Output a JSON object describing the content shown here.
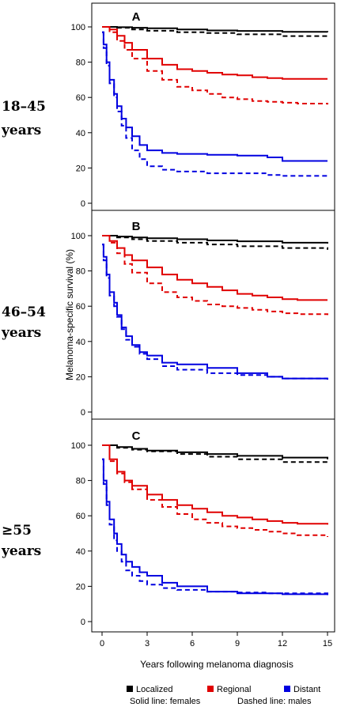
{
  "chart_data": {
    "type": "line",
    "ylabel": "Melanoma-specific survival (%)",
    "xlabel": "Years following melanoma diagnosis",
    "xlim": [
      0,
      15
    ],
    "ylim": [
      0,
      100
    ],
    "xticks": [
      0,
      3,
      6,
      9,
      12,
      15
    ],
    "yticks": [
      0,
      20,
      40,
      60,
      80,
      100
    ],
    "legend": {
      "position": "bottom",
      "entries": [
        {
          "label": "Localized",
          "color": "#000000"
        },
        {
          "label": "Regional",
          "color": "#e00000"
        },
        {
          "label": "Distant",
          "color": "#0000e0"
        }
      ],
      "notes": [
        "Solid line: females",
        "Dashed line: males"
      ]
    },
    "panels": [
      {
        "letter": "A",
        "age_label_lines": [
          "18–45",
          "years"
        ],
        "series": [
          {
            "name": "Localized",
            "sex": "females",
            "color": "#000000",
            "dashed": false,
            "x": [
              0,
              1,
              2,
              3,
              5,
              7,
              9,
              12,
              15
            ],
            "y": [
              100,
              99.8,
              99.5,
              99.2,
              98.5,
              98,
              97.7,
              97.2,
              97
            ]
          },
          {
            "name": "Localized",
            "sex": "males",
            "color": "#000000",
            "dashed": true,
            "x": [
              0,
              1,
              2,
              3,
              5,
              7,
              9,
              12,
              15
            ],
            "y": [
              100,
              99.5,
              98.5,
              97.8,
              97,
              96.5,
              95.8,
              94.8,
              93.5
            ]
          },
          {
            "name": "Regional",
            "sex": "females",
            "color": "#e00000",
            "dashed": false,
            "x": [
              0,
              0.5,
              1,
              1.5,
              2,
              3,
              4,
              5,
              6,
              7,
              8,
              9,
              10,
              11,
              12,
              13,
              15
            ],
            "y": [
              100,
              98.5,
              95,
              91,
              87,
              82,
              78.5,
              76,
              75,
              74,
              73,
              72.5,
              71.5,
              71,
              70.5,
              70.5,
              70.5
            ]
          },
          {
            "name": "Regional",
            "sex": "males",
            "color": "#e00000",
            "dashed": true,
            "x": [
              0,
              0.5,
              1,
              1.5,
              2,
              3,
              4,
              5,
              6,
              7,
              8,
              9,
              10,
              11,
              12,
              13,
              15
            ],
            "y": [
              100,
              97,
              92,
              87,
              82,
              75,
              70,
              66,
              64,
              62,
              60,
              59,
              58,
              57.5,
              57,
              56.5,
              56
            ]
          },
          {
            "name": "Distant",
            "sex": "females",
            "color": "#0000e0",
            "dashed": false,
            "x": [
              0,
              0.1,
              0.3,
              0.5,
              0.8,
              1,
              1.3,
              1.6,
              2,
              2.5,
              3,
              4,
              5,
              7,
              9,
              11,
              12,
              15
            ],
            "y": [
              97,
              90,
              80,
              70,
              62,
              55,
              48,
              43,
              38,
              33,
              30,
              28.5,
              28,
              27.5,
              27,
              26,
              24,
              24
            ]
          },
          {
            "name": "Distant",
            "sex": "males",
            "color": "#0000e0",
            "dashed": true,
            "x": [
              0,
              0.1,
              0.3,
              0.5,
              0.8,
              1,
              1.3,
              1.6,
              2,
              2.5,
              3,
              4,
              5,
              7,
              9,
              11,
              12,
              15
            ],
            "y": [
              97,
              88,
              78,
              68,
              60,
              52,
              44,
              37,
              30,
              25,
              21,
              19,
              18,
              17,
              17,
              16,
              15.5,
              15
            ]
          }
        ]
      },
      {
        "letter": "B",
        "age_label_lines": [
          "46–54",
          "years"
        ],
        "series": [
          {
            "name": "Localized",
            "sex": "females",
            "color": "#000000",
            "dashed": false,
            "x": [
              0,
              1,
              2,
              3,
              5,
              7,
              9,
              12,
              15
            ],
            "y": [
              100,
              99.5,
              99,
              98.5,
              98,
              97.3,
              96.8,
              96,
              95.5
            ]
          },
          {
            "name": "Localized",
            "sex": "males",
            "color": "#000000",
            "dashed": true,
            "x": [
              0,
              1,
              2,
              3,
              5,
              7,
              9,
              12,
              15
            ],
            "y": [
              100,
              99,
              98,
              97,
              96,
              95,
              94,
              93,
              92
            ]
          },
          {
            "name": "Regional",
            "sex": "females",
            "color": "#e00000",
            "dashed": false,
            "x": [
              0,
              0.5,
              1,
              1.5,
              2,
              3,
              4,
              5,
              6,
              7,
              8,
              9,
              10,
              11,
              12,
              13,
              15
            ],
            "y": [
              100,
              97,
              93,
              89,
              86,
              82,
              78,
              75,
              73,
              71,
              69,
              67,
              66,
              65,
              64,
              63.5,
              63.5
            ]
          },
          {
            "name": "Regional",
            "sex": "males",
            "color": "#e00000",
            "dashed": true,
            "x": [
              0,
              0.5,
              1,
              1.5,
              2,
              3,
              4,
              5,
              6,
              7,
              8,
              9,
              10,
              11,
              12,
              13,
              15
            ],
            "y": [
              100,
              96,
              90,
              84,
              79,
              73,
              68,
              65,
              63,
              61,
              60,
              59,
              58,
              57,
              56,
              55.5,
              55
            ]
          },
          {
            "name": "Distant",
            "sex": "females",
            "color": "#0000e0",
            "dashed": false,
            "x": [
              0,
              0.1,
              0.3,
              0.5,
              0.8,
              1,
              1.3,
              1.6,
              2,
              2.5,
              3,
              4,
              5,
              7,
              9,
              11,
              12,
              15
            ],
            "y": [
              95,
              88,
              78,
              68,
              62,
              55,
              48,
              43,
              38,
              34,
              32,
              28,
              27,
              25,
              22,
              20,
              19,
              19
            ]
          },
          {
            "name": "Distant",
            "sex": "males",
            "color": "#0000e0",
            "dashed": true,
            "x": [
              0,
              0.1,
              0.3,
              0.5,
              0.8,
              1,
              1.3,
              1.6,
              2,
              2.5,
              3,
              4,
              5,
              7,
              9,
              11,
              12,
              15
            ],
            "y": [
              95,
              86,
              76,
              66,
              60,
              54,
              47,
              41,
              37,
              33,
              30,
              26,
              24,
              22,
              21,
              20,
              19,
              18
            ]
          }
        ]
      },
      {
        "letter": "C",
        "age_label_lines": [
          "≥55",
          "years"
        ],
        "series": [
          {
            "name": "Localized",
            "sex": "females",
            "color": "#000000",
            "dashed": false,
            "x": [
              0,
              1,
              2,
              3,
              5,
              7,
              9,
              12,
              15
            ],
            "y": [
              100,
              99,
              98,
              97,
              96,
              95,
              94,
              93,
              92
            ]
          },
          {
            "name": "Localized",
            "sex": "males",
            "color": "#000000",
            "dashed": true,
            "x": [
              0,
              1,
              2,
              3,
              5,
              7,
              9,
              12,
              15
            ],
            "y": [
              100,
              98.5,
              97.5,
              96.5,
              95,
              93.5,
              92,
              90.5,
              89
            ]
          },
          {
            "name": "Regional",
            "sex": "females",
            "color": "#e00000",
            "dashed": false,
            "x": [
              0,
              0.5,
              1,
              1.5,
              2,
              3,
              4,
              5,
              6,
              7,
              8,
              9,
              10,
              11,
              12,
              13,
              15
            ],
            "y": [
              100,
              92,
              85,
              80,
              77,
              72,
              69,
              66,
              64,
              62,
              60,
              59,
              58,
              57,
              56,
              55.5,
              55
            ]
          },
          {
            "name": "Regional",
            "sex": "males",
            "color": "#e00000",
            "dashed": true,
            "x": [
              0,
              0.5,
              1,
              1.5,
              2,
              3,
              4,
              5,
              6,
              7,
              8,
              9,
              10,
              11,
              12,
              13,
              15
            ],
            "y": [
              100,
              91,
              84,
              79,
              75,
              69,
              65,
              61,
              58,
              56,
              54,
              53,
              52,
              51,
              50,
              49,
              48
            ]
          },
          {
            "name": "Distant",
            "sex": "females",
            "color": "#0000e0",
            "dashed": false,
            "x": [
              0,
              0.1,
              0.3,
              0.5,
              0.8,
              1,
              1.3,
              1.6,
              2,
              2.5,
              3,
              4,
              5,
              7,
              9,
              11,
              12,
              15
            ],
            "y": [
              92,
              80,
              68,
              58,
              50,
              44,
              38,
              34,
              31,
              28,
              26,
              22,
              20,
              17,
              16,
              16,
              15.5,
              15
            ]
          },
          {
            "name": "Distant",
            "sex": "males",
            "color": "#0000e0",
            "dashed": true,
            "x": [
              0,
              0.1,
              0.3,
              0.5,
              0.8,
              1,
              1.3,
              1.6,
              2,
              2.5,
              3,
              4,
              5,
              7,
              9,
              11,
              12,
              15
            ],
            "y": [
              92,
              78,
              66,
              55,
              46,
              40,
              34,
              29,
              26,
              23,
              21,
              19,
              18,
              17,
              16.5,
              16,
              16,
              15
            ]
          }
        ]
      }
    ]
  }
}
